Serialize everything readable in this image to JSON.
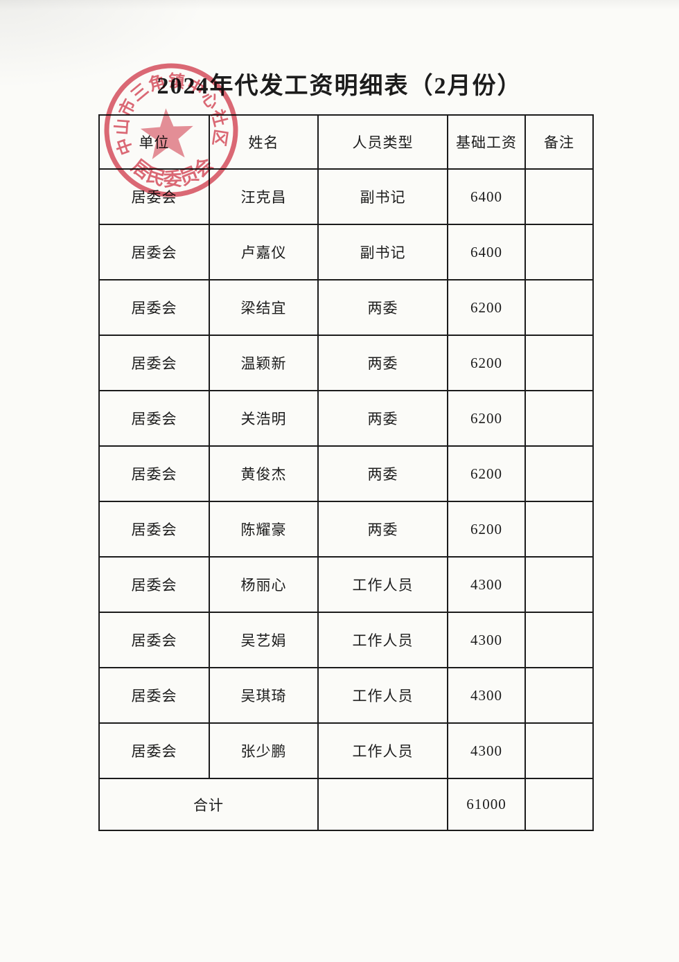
{
  "title": "2024年代发工资明细表（2月份）",
  "stamp": {
    "arc_text": "中山市三角镇中心社区",
    "bottom_text": "居民委员会",
    "color": "#d8505f"
  },
  "table": {
    "headers": [
      "单位",
      "姓名",
      "人员类型",
      "基础工资",
      "备注"
    ],
    "rows": [
      [
        "居委会",
        "汪克昌",
        "副书记",
        "6400",
        ""
      ],
      [
        "居委会",
        "卢嘉仪",
        "副书记",
        "6400",
        ""
      ],
      [
        "居委会",
        "梁结宜",
        "两委",
        "6200",
        ""
      ],
      [
        "居委会",
        "温颖新",
        "两委",
        "6200",
        ""
      ],
      [
        "居委会",
        "关浩明",
        "两委",
        "6200",
        ""
      ],
      [
        "居委会",
        "黄俊杰",
        "两委",
        "6200",
        ""
      ],
      [
        "居委会",
        "陈耀豪",
        "两委",
        "6200",
        ""
      ],
      [
        "居委会",
        "杨丽心",
        "工作人员",
        "4300",
        ""
      ],
      [
        "居委会",
        "吴艺娟",
        "工作人员",
        "4300",
        ""
      ],
      [
        "居委会",
        "吴琪琦",
        "工作人员",
        "4300",
        ""
      ],
      [
        "居委会",
        "张少鹏",
        "工作人员",
        "4300",
        ""
      ]
    ],
    "total_label": "合计",
    "total_type": "",
    "total_salary": "61000",
    "total_note": ""
  }
}
